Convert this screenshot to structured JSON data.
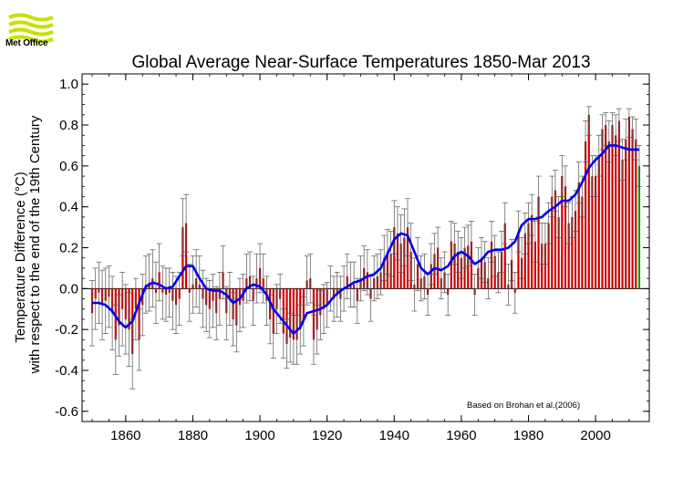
{
  "brand": {
    "name": "Met Office",
    "logo_color": "#c8e000"
  },
  "chart_data": {
    "type": "bar",
    "title": "Global Average Near-Surface Temperatures 1850-Mar 2013",
    "xlabel": "",
    "ylabel_line1": "Temperature Difference (°C)",
    "ylabel_line2": "with respect to the end of the 19th Century",
    "annotation": "Based on Brohan et al.(2006)",
    "xlim": [
      1847,
      2016
    ],
    "ylim": [
      -0.65,
      1.05
    ],
    "x_ticks": [
      1860,
      1880,
      1900,
      1920,
      1940,
      1960,
      1980,
      2000
    ],
    "y_ticks": [
      -0.6,
      -0.4,
      -0.2,
      0.0,
      0.2,
      0.4,
      0.6,
      0.8,
      1.0
    ],
    "y_tick_labels": [
      "-0.6",
      "-0.4",
      "-0.2",
      "0.0",
      "0.2",
      "0.4",
      "0.6",
      "0.8",
      "1.0"
    ],
    "zero_line": true,
    "colors": {
      "bars": "#cc0000",
      "final_year_bar": "#00a000",
      "error_bars": "#555555",
      "smoothed": "#0000ee"
    },
    "series": [
      {
        "kind": "annual-anomaly-bars",
        "x": [
          1850,
          1851,
          1852,
          1853,
          1854,
          1855,
          1856,
          1857,
          1858,
          1859,
          1860,
          1861,
          1862,
          1863,
          1864,
          1865,
          1866,
          1867,
          1868,
          1869,
          1870,
          1871,
          1872,
          1873,
          1874,
          1875,
          1876,
          1877,
          1878,
          1879,
          1880,
          1881,
          1882,
          1883,
          1884,
          1885,
          1886,
          1887,
          1888,
          1889,
          1890,
          1891,
          1892,
          1893,
          1894,
          1895,
          1896,
          1897,
          1898,
          1899,
          1900,
          1901,
          1902,
          1903,
          1904,
          1905,
          1906,
          1907,
          1908,
          1909,
          1910,
          1911,
          1912,
          1913,
          1914,
          1915,
          1916,
          1917,
          1918,
          1919,
          1920,
          1921,
          1922,
          1923,
          1924,
          1925,
          1926,
          1927,
          1928,
          1929,
          1930,
          1931,
          1932,
          1933,
          1934,
          1935,
          1936,
          1937,
          1938,
          1939,
          1940,
          1941,
          1942,
          1943,
          1944,
          1945,
          1946,
          1947,
          1948,
          1949,
          1950,
          1951,
          1952,
          1953,
          1954,
          1955,
          1956,
          1957,
          1958,
          1959,
          1960,
          1961,
          1962,
          1963,
          1964,
          1965,
          1966,
          1967,
          1968,
          1969,
          1970,
          1971,
          1972,
          1973,
          1974,
          1975,
          1976,
          1977,
          1978,
          1979,
          1980,
          1981,
          1982,
          1983,
          1984,
          1985,
          1986,
          1987,
          1988,
          1989,
          1990,
          1991,
          1992,
          1993,
          1994,
          1995,
          1996,
          1997,
          1998,
          1999,
          2000,
          2001,
          2002,
          2003,
          2004,
          2005,
          2006,
          2007,
          2008,
          2009,
          2010,
          2011,
          2012,
          2013
        ],
        "values": [
          -0.12,
          -0.05,
          -0.02,
          -0.08,
          -0.06,
          -0.04,
          -0.12,
          -0.25,
          -0.18,
          -0.1,
          -0.15,
          -0.2,
          -0.32,
          -0.1,
          -0.25,
          -0.08,
          0.02,
          0.03,
          0.05,
          -0.02,
          0.08,
          -0.02,
          -0.03,
          -0.02,
          -0.06,
          -0.08,
          -0.05,
          0.3,
          0.32,
          -0.02,
          0.02,
          0.05,
          0.02,
          -0.05,
          -0.08,
          -0.1,
          -0.06,
          -0.12,
          -0.05,
          0.08,
          -0.12,
          -0.05,
          -0.15,
          -0.18,
          -0.08,
          -0.06,
          0.05,
          0.06,
          -0.06,
          0.05,
          0.1,
          0.05,
          -0.06,
          -0.15,
          -0.22,
          -0.1,
          -0.05,
          -0.22,
          -0.27,
          -0.24,
          -0.25,
          -0.25,
          -0.2,
          -0.16,
          0.04,
          0.05,
          -0.25,
          -0.2,
          -0.13,
          -0.1,
          -0.08,
          0.0,
          -0.05,
          -0.03,
          -0.05,
          0.0,
          0.06,
          0.02,
          0.02,
          -0.06,
          0.05,
          0.1,
          0.08,
          -0.05,
          0.05,
          0.06,
          0.08,
          0.15,
          0.18,
          0.17,
          0.3,
          0.27,
          0.22,
          0.25,
          0.3,
          0.18,
          0.02,
          0.12,
          0.05,
          0.06,
          -0.03,
          0.12,
          0.17,
          0.2,
          0.05,
          0.08,
          -0.03,
          0.23,
          0.22,
          0.18,
          0.15,
          0.2,
          0.21,
          0.23,
          -0.03,
          0.1,
          0.15,
          0.13,
          0.05,
          0.23,
          0.16,
          0.08,
          0.18,
          0.32,
          0.02,
          0.14,
          -0.02,
          0.28,
          0.15,
          0.27,
          0.32,
          0.36,
          0.23,
          0.45,
          0.22,
          0.22,
          0.32,
          0.45,
          0.48,
          0.35,
          0.55,
          0.5,
          0.32,
          0.35,
          0.38,
          0.52,
          0.45,
          0.72,
          0.85,
          0.55,
          0.55,
          0.65,
          0.78,
          0.8,
          0.72,
          0.8,
          0.75,
          0.82,
          0.63,
          0.73,
          0.84,
          0.78,
          0.73,
          0.6
        ]
      },
      {
        "kind": "error-bars",
        "lower": [
          -0.28,
          -0.2,
          -0.17,
          -0.25,
          -0.22,
          -0.19,
          -0.3,
          -0.42,
          -0.33,
          -0.28,
          -0.32,
          -0.38,
          -0.49,
          -0.25,
          -0.4,
          -0.23,
          -0.12,
          -0.11,
          -0.09,
          -0.17,
          -0.06,
          -0.15,
          -0.16,
          -0.14,
          -0.2,
          -0.22,
          -0.18,
          0.16,
          0.18,
          -0.16,
          -0.12,
          -0.09,
          -0.12,
          -0.19,
          -0.21,
          -0.24,
          -0.19,
          -0.25,
          -0.18,
          -0.05,
          -0.25,
          -0.18,
          -0.28,
          -0.31,
          -0.21,
          -0.19,
          -0.07,
          -0.06,
          -0.18,
          -0.07,
          -0.02,
          -0.07,
          -0.18,
          -0.27,
          -0.34,
          -0.22,
          -0.17,
          -0.34,
          -0.39,
          -0.36,
          -0.37,
          -0.37,
          -0.32,
          -0.28,
          -0.08,
          -0.07,
          -0.37,
          -0.32,
          -0.25,
          -0.22,
          -0.19,
          -0.11,
          -0.16,
          -0.14,
          -0.16,
          -0.11,
          -0.05,
          -0.09,
          -0.09,
          -0.17,
          -0.06,
          -0.01,
          -0.03,
          -0.16,
          -0.06,
          -0.05,
          -0.03,
          0.04,
          0.07,
          0.06,
          0.17,
          0.14,
          0.08,
          0.11,
          0.16,
          0.04,
          -0.11,
          -0.01,
          -0.06,
          -0.05,
          -0.13,
          0.02,
          0.07,
          0.1,
          -0.05,
          -0.02,
          -0.13,
          0.13,
          0.12,
          0.08,
          0.05,
          0.1,
          0.11,
          0.13,
          -0.13,
          0.0,
          0.05,
          0.03,
          -0.05,
          0.13,
          0.06,
          -0.02,
          0.08,
          0.22,
          -0.08,
          0.04,
          -0.12,
          0.18,
          0.05,
          0.17,
          0.22,
          0.26,
          0.13,
          0.35,
          0.12,
          0.12,
          0.22,
          0.35,
          0.38,
          0.25,
          0.45,
          0.4,
          0.22,
          0.25,
          0.28,
          0.42,
          0.35,
          0.62,
          0.75,
          0.45,
          0.45,
          0.55,
          0.68,
          0.7,
          0.62,
          0.7,
          0.65,
          0.72,
          0.53,
          0.63,
          0.74,
          0.68,
          0.63,
          0.5
        ],
        "upper": [
          0.04,
          0.1,
          0.13,
          0.09,
          0.1,
          0.11,
          0.06,
          -0.08,
          -0.03,
          0.08,
          0.02,
          -0.02,
          -0.15,
          0.05,
          -0.1,
          0.07,
          0.16,
          0.17,
          0.19,
          0.13,
          0.22,
          0.11,
          0.1,
          0.1,
          0.08,
          0.06,
          0.08,
          0.44,
          0.46,
          0.12,
          0.16,
          0.19,
          0.16,
          0.09,
          0.05,
          0.04,
          0.07,
          0.01,
          0.08,
          0.21,
          0.01,
          0.08,
          -0.02,
          -0.05,
          0.05,
          0.07,
          0.17,
          0.18,
          0.06,
          0.17,
          0.22,
          0.17,
          0.06,
          -0.03,
          -0.1,
          0.02,
          0.07,
          -0.1,
          -0.15,
          -0.12,
          -0.13,
          -0.13,
          -0.08,
          -0.04,
          0.16,
          0.17,
          -0.13,
          -0.08,
          -0.01,
          0.02,
          0.03,
          0.11,
          0.06,
          0.08,
          0.06,
          0.11,
          0.17,
          0.13,
          0.13,
          0.05,
          0.16,
          0.21,
          0.19,
          0.06,
          0.16,
          0.17,
          0.19,
          0.26,
          0.29,
          0.28,
          0.43,
          0.4,
          0.36,
          0.39,
          0.44,
          0.32,
          0.15,
          0.25,
          0.16,
          0.17,
          0.07,
          0.22,
          0.27,
          0.3,
          0.15,
          0.18,
          0.07,
          0.33,
          0.32,
          0.28,
          0.25,
          0.3,
          0.31,
          0.33,
          0.07,
          0.2,
          0.25,
          0.23,
          0.15,
          0.33,
          0.26,
          0.18,
          0.28,
          0.42,
          0.12,
          0.24,
          0.08,
          0.38,
          0.25,
          0.37,
          0.42,
          0.46,
          0.33,
          0.55,
          0.32,
          0.32,
          0.42,
          0.55,
          0.58,
          0.45,
          0.65,
          0.6,
          0.42,
          0.45,
          0.48,
          0.62,
          0.55,
          0.82,
          0.89,
          0.65,
          0.65,
          0.75,
          0.85,
          0.86,
          0.82,
          0.86,
          0.85,
          0.88,
          0.73,
          0.83,
          0.88,
          0.84,
          0.83,
          0.7
        ]
      },
      {
        "kind": "smoothed-line",
        "x": [
          1850,
          1852,
          1854,
          1856,
          1858,
          1860,
          1862,
          1864,
          1866,
          1868,
          1870,
          1872,
          1874,
          1876,
          1878,
          1880,
          1882,
          1884,
          1886,
          1888,
          1890,
          1892,
          1894,
          1896,
          1898,
          1900,
          1902,
          1904,
          1906,
          1908,
          1910,
          1912,
          1914,
          1916,
          1918,
          1920,
          1922,
          1924,
          1926,
          1928,
          1930,
          1932,
          1934,
          1936,
          1938,
          1940,
          1942,
          1944,
          1946,
          1948,
          1950,
          1952,
          1954,
          1956,
          1958,
          1960,
          1962,
          1964,
          1966,
          1968,
          1970,
          1972,
          1974,
          1976,
          1978,
          1980,
          1982,
          1984,
          1986,
          1988,
          1990,
          1992,
          1994,
          1996,
          1998,
          2000,
          2002,
          2004,
          2006,
          2008,
          2010,
          2012,
          2013
        ],
        "values": [
          -0.07,
          -0.07,
          -0.08,
          -0.11,
          -0.16,
          -0.19,
          -0.16,
          -0.07,
          0.01,
          0.03,
          0.02,
          0.0,
          0.01,
          0.06,
          0.11,
          0.11,
          0.05,
          0.0,
          -0.01,
          -0.01,
          -0.03,
          -0.07,
          -0.05,
          0.0,
          0.02,
          0.01,
          -0.03,
          -0.1,
          -0.14,
          -0.18,
          -0.22,
          -0.19,
          -0.12,
          -0.11,
          -0.1,
          -0.08,
          -0.04,
          -0.01,
          0.01,
          0.03,
          0.04,
          0.06,
          0.07,
          0.1,
          0.17,
          0.24,
          0.27,
          0.26,
          0.18,
          0.1,
          0.07,
          0.1,
          0.09,
          0.11,
          0.16,
          0.18,
          0.16,
          0.12,
          0.14,
          0.18,
          0.19,
          0.19,
          0.2,
          0.23,
          0.31,
          0.34,
          0.34,
          0.35,
          0.38,
          0.4,
          0.43,
          0.43,
          0.46,
          0.52,
          0.59,
          0.63,
          0.66,
          0.7,
          0.7,
          0.69,
          0.68,
          0.68,
          0.68
        ]
      }
    ]
  }
}
